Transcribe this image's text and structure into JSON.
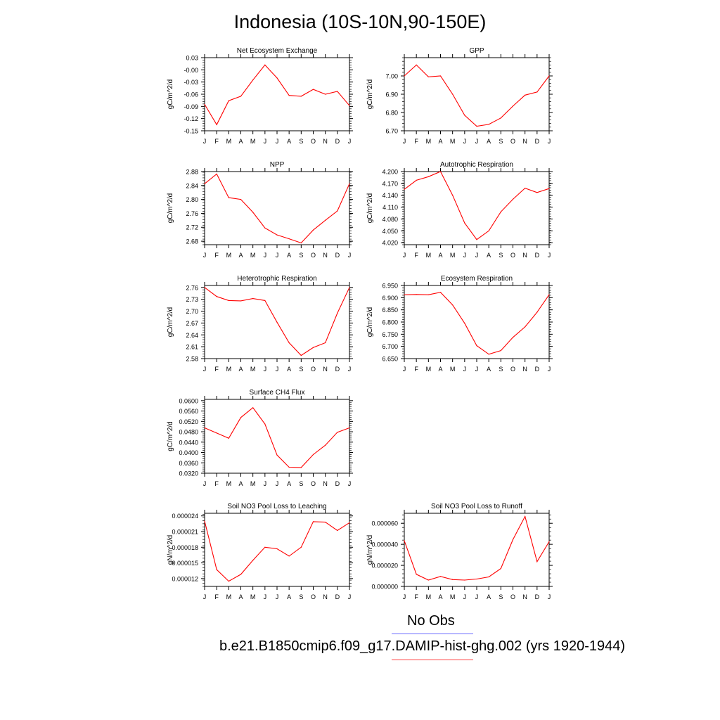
{
  "page_title": "Indonesia (10S-10N,90-150E)",
  "legend": {
    "obs_label": "No Obs",
    "obs_color": "#6a6aff",
    "model_label": "b.e21.B1850cmip6.f09_g17.DAMIP-hist-ghg.002 (yrs 1920-1944)",
    "model_color": "#ff4040"
  },
  "line_color": "#ff0000",
  "chart_data": [
    {
      "type": "line",
      "title": "Net Ecosystem Exchange",
      "ylabel": "gC/m^2/d",
      "x": [
        "J",
        "F",
        "M",
        "A",
        "M",
        "J",
        "J",
        "A",
        "S",
        "O",
        "N",
        "D",
        "J"
      ],
      "yticks": [
        "0.03",
        "-0.00",
        "-0.03",
        "-0.06",
        "-0.09",
        "-0.12",
        "-0.15"
      ],
      "ylim": [
        -0.15,
        0.03
      ],
      "values": [
        -0.085,
        -0.135,
        -0.076,
        -0.065,
        -0.025,
        0.012,
        -0.02,
        -0.063,
        -0.065,
        -0.048,
        -0.06,
        -0.053,
        -0.088
      ]
    },
    {
      "type": "line",
      "title": "GPP",
      "ylabel": "gC/m^2/d",
      "x": [
        "J",
        "F",
        "M",
        "A",
        "M",
        "J",
        "J",
        "A",
        "S",
        "O",
        "N",
        "D",
        "J"
      ],
      "yticks": [
        "7.00",
        "6.90",
        "6.80",
        "6.70"
      ],
      "ylim": [
        6.7,
        7.1
      ],
      "values": [
        7.0,
        7.06,
        6.995,
        7.0,
        6.9,
        6.785,
        6.725,
        6.735,
        6.77,
        6.835,
        6.895,
        6.912,
        7.0
      ]
    },
    {
      "type": "line",
      "title": "NPP",
      "ylabel": "gC/m^2/d",
      "x": [
        "J",
        "F",
        "M",
        "A",
        "M",
        "J",
        "J",
        "A",
        "S",
        "O",
        "N",
        "D",
        "J"
      ],
      "yticks": [
        "2.88",
        "2.84",
        "2.80",
        "2.76",
        "2.72",
        "2.68"
      ],
      "ylim": [
        2.67,
        2.88
      ],
      "values": [
        2.845,
        2.873,
        2.805,
        2.8,
        2.763,
        2.718,
        2.698,
        2.687,
        2.675,
        2.712,
        2.74,
        2.767,
        2.845
      ]
    },
    {
      "type": "line",
      "title": "Autotrophic Respiration",
      "ylabel": "gC/m^2/d",
      "x": [
        "J",
        "F",
        "M",
        "A",
        "M",
        "J",
        "J",
        "A",
        "S",
        "O",
        "N",
        "D",
        "J"
      ],
      "yticks": [
        "4.200",
        "4.170",
        "4.140",
        "4.110",
        "4.080",
        "4.050",
        "4.020"
      ],
      "ylim": [
        4.015,
        4.2
      ],
      "values": [
        4.155,
        4.178,
        4.187,
        4.2,
        4.14,
        4.07,
        4.028,
        4.05,
        4.098,
        4.13,
        4.158,
        4.147,
        4.157
      ]
    },
    {
      "type": "line",
      "title": "Heterotrophic Respiration",
      "ylabel": "gC/m^2/d",
      "x": [
        "J",
        "F",
        "M",
        "A",
        "M",
        "J",
        "J",
        "A",
        "S",
        "O",
        "N",
        "D",
        "J"
      ],
      "yticks": [
        "2.76",
        "2.73",
        "2.70",
        "2.67",
        "2.64",
        "2.61",
        "2.58"
      ],
      "ylim": [
        2.58,
        2.765
      ],
      "values": [
        2.76,
        2.737,
        2.727,
        2.726,
        2.732,
        2.727,
        2.672,
        2.62,
        2.588,
        2.608,
        2.62,
        2.695,
        2.76
      ]
    },
    {
      "type": "line",
      "title": "Ecosystem Respiration",
      "ylabel": "gC/m^2/d",
      "x": [
        "J",
        "F",
        "M",
        "A",
        "M",
        "J",
        "J",
        "A",
        "S",
        "O",
        "N",
        "D",
        "J"
      ],
      "yticks": [
        "6.950",
        "6.900",
        "6.850",
        "6.800",
        "6.750",
        "6.700",
        "6.650"
      ],
      "ylim": [
        6.65,
        6.95
      ],
      "values": [
        6.912,
        6.913,
        6.912,
        6.922,
        6.87,
        6.795,
        6.703,
        6.668,
        6.683,
        6.737,
        6.78,
        6.84,
        6.912
      ]
    },
    {
      "type": "line",
      "title": "Surface CH4 Flux",
      "ylabel": "gC/m^2/d",
      "x": [
        "J",
        "F",
        "M",
        "A",
        "M",
        "J",
        "J",
        "A",
        "S",
        "O",
        "N",
        "D",
        "J"
      ],
      "yticks": [
        "0.0600",
        "0.0560",
        "0.0520",
        "0.0480",
        "0.0440",
        "0.0400",
        "0.0360",
        "0.0320"
      ],
      "ylim": [
        0.032,
        0.0605
      ],
      "values": [
        0.0495,
        0.0475,
        0.0455,
        0.0535,
        0.0573,
        0.051,
        0.039,
        0.0343,
        0.0342,
        0.0392,
        0.0428,
        0.0478,
        0.0495
      ]
    },
    {
      "type": "line",
      "title": "Soil NO3 Pool Loss to Leaching",
      "ylabel": "gN/m^2/d",
      "x": [
        "J",
        "F",
        "M",
        "A",
        "M",
        "J",
        "J",
        "A",
        "S",
        "O",
        "N",
        "D",
        "J"
      ],
      "yticks": [
        "0.000024",
        "0.000021",
        "0.000018",
        "0.000015",
        "0.000012"
      ],
      "ylim": [
        1.05e-05,
        2.45e-05
      ],
      "values": [
        2.3e-05,
        1.37e-05,
        1.15e-05,
        1.28e-05,
        1.55e-05,
        1.8e-05,
        1.77e-05,
        1.63e-05,
        1.8e-05,
        2.29e-05,
        2.28e-05,
        2.12e-05,
        2.27e-05
      ]
    },
    {
      "type": "line",
      "title": "Soil NO3 Pool Loss to Runoff",
      "ylabel": "gN/m^2/d",
      "x": [
        "J",
        "F",
        "M",
        "A",
        "M",
        "J",
        "J",
        "A",
        "S",
        "O",
        "N",
        "D",
        "J"
      ],
      "yticks": [
        "0.000060",
        "0.000040",
        "0.000020",
        "0.000000"
      ],
      "ylim": [
        0.0,
        6.95e-05
      ],
      "values": [
        4.35e-05,
        1.15e-05,
        6e-06,
        9.5e-06,
        6.5e-06,
        6e-06,
        7e-06,
        9e-06,
        1.7e-05,
        4.45e-05,
        6.65e-05,
        2.35e-05,
        4.25e-05
      ]
    }
  ]
}
